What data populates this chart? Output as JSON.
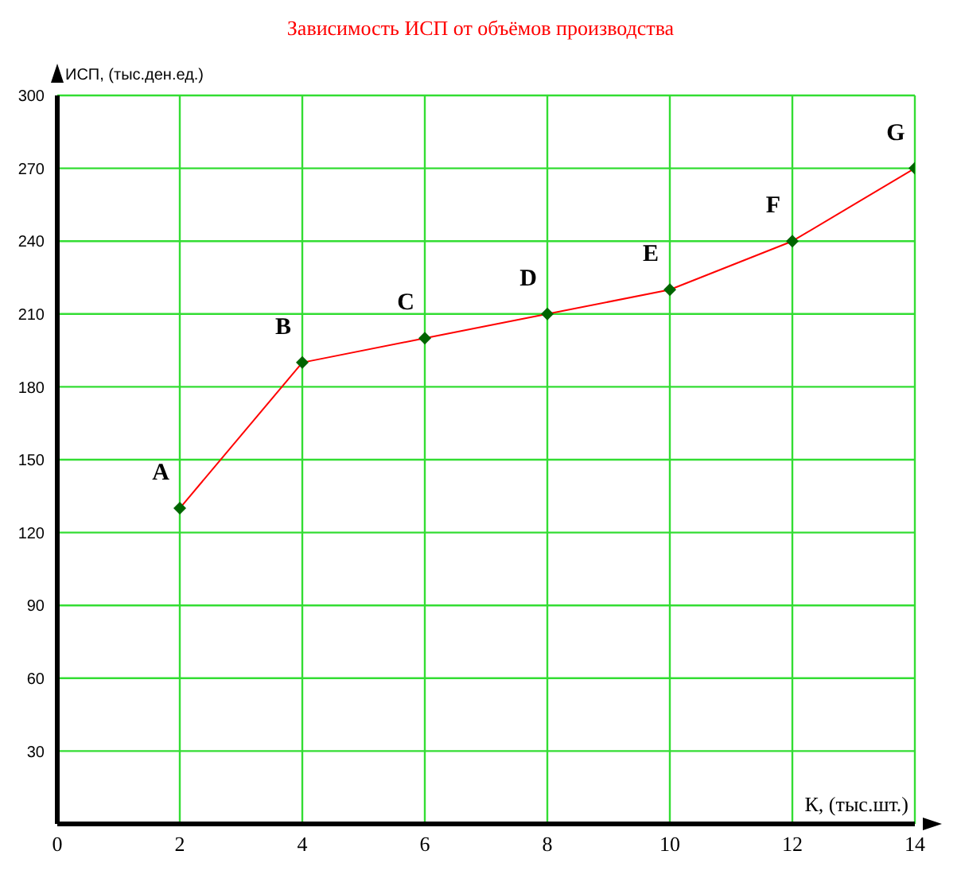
{
  "chart_data": {
    "type": "line",
    "title": "Зависимость ИСП от объёмов производства",
    "xlabel": "К, (тыс.шт.)",
    "ylabel": "ИСП, (тыс.ден.ед.)",
    "x": [
      2,
      4,
      6,
      8,
      10,
      12,
      14
    ],
    "series": [
      {
        "color": "#ff0000",
        "colors": [
          "#006400",
          "#006400",
          "#006400",
          "#006400",
          "#006400",
          "#006400",
          "#006400"
        ],
        "values": [
          130,
          190,
          200,
          210,
          220,
          240,
          270
        ]
      }
    ],
    "xlim": [
      0,
      14
    ],
    "xticks": [
      0,
      2,
      4,
      6,
      8,
      10,
      12,
      14
    ],
    "ylim": [
      0,
      300
    ],
    "yticks": [
      {
        "value": 0,
        "label": null
      },
      30,
      60,
      90,
      120,
      150,
      180,
      210,
      240,
      270,
      300
    ],
    "grid": true,
    "marker": "diamond",
    "line_style": "solid",
    "legend": false,
    "annotations": [
      {
        "text": "A",
        "x": 2,
        "y": 130
      },
      {
        "text": "B",
        "x": 4,
        "y": 190
      },
      {
        "text": "C",
        "x": 6,
        "y": 200
      },
      {
        "text": "D",
        "x": 8,
        "y": 210
      },
      {
        "text": "E",
        "x": 10,
        "y": 220
      },
      {
        "text": "F",
        "x": 12,
        "y": 240
      },
      {
        "text": "G",
        "x": 14,
        "y": 270
      }
    ]
  }
}
